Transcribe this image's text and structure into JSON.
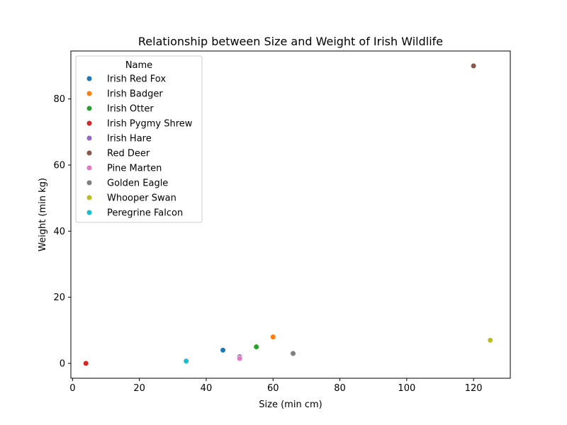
{
  "chart_data": {
    "type": "scatter",
    "title": "Relationship between Size and Weight of Irish Wildlife",
    "xlabel": "Size (min cm)",
    "ylabel": "Weight (min kg)",
    "xlim": [
      -0.5,
      131.0
    ],
    "ylim": [
      -4.5,
      94.5
    ],
    "xticks": [
      0,
      20,
      40,
      60,
      80,
      100,
      120
    ],
    "yticks": [
      0,
      20,
      40,
      60,
      80
    ],
    "grid": false,
    "legend": {
      "title": "Name",
      "placement": "top-left"
    },
    "series": [
      {
        "name": "Irish Red Fox",
        "color": "#1f77b4",
        "x": 45,
        "y": 4
      },
      {
        "name": "Irish Badger",
        "color": "#ff7f0e",
        "x": 60,
        "y": 8
      },
      {
        "name": "Irish Otter",
        "color": "#2ca02c",
        "x": 55,
        "y": 5
      },
      {
        "name": "Irish Pygmy Shrew",
        "color": "#d62728",
        "x": 4,
        "y": 0.004
      },
      {
        "name": "Irish Hare",
        "color": "#9467bd",
        "x": 50,
        "y": 2
      },
      {
        "name": "Red Deer",
        "color": "#8c564b",
        "x": 120,
        "y": 90
      },
      {
        "name": "Pine Marten",
        "color": "#e377c2",
        "x": 50,
        "y": 1.5
      },
      {
        "name": "Golden Eagle",
        "color": "#7f7f7f",
        "x": 66,
        "y": 3
      },
      {
        "name": "Whooper Swan",
        "color": "#bcbd22",
        "x": 125,
        "y": 7
      },
      {
        "name": "Peregrine Falcon",
        "color": "#17becf",
        "x": 34,
        "y": 0.7
      }
    ]
  }
}
